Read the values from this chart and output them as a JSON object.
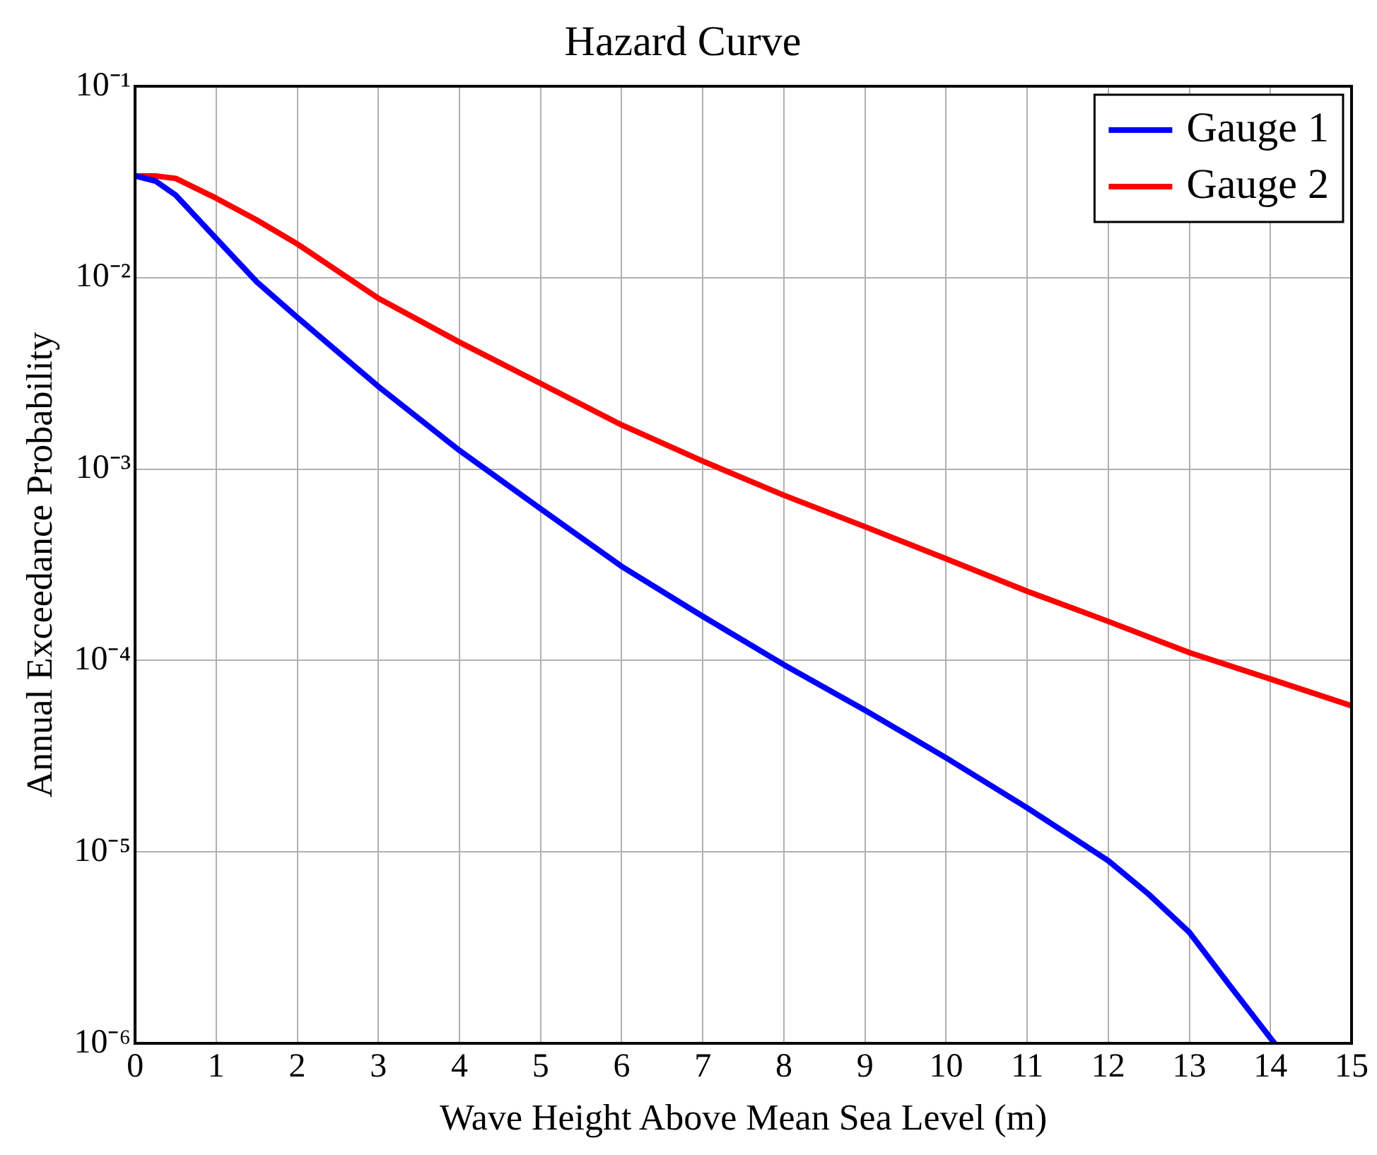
{
  "chart_data": {
    "type": "line",
    "title": "Hazard Curve",
    "xlabel": "Wave Height Above Mean Sea Level (m)",
    "ylabel": "Annual Exceedance Probability",
    "log": "y",
    "grid": true,
    "legend": "top right",
    "line_style": "solid",
    "marker": "none",
    "xlim": [
      0,
      15
    ],
    "xticks": [
      0,
      1,
      2,
      3,
      4,
      5,
      6,
      7,
      8,
      9,
      10,
      11,
      12,
      13,
      14,
      15
    ],
    "ylim": [
      1e-06,
      0.1
    ],
    "yticks": [
      {
        "value": 1e-06,
        "label": "10⁻⁶"
      },
      {
        "value": 1e-05,
        "label": "10⁻⁵"
      },
      {
        "value": 0.0001,
        "label": "10⁻⁴"
      },
      {
        "value": 0.001,
        "label": "10⁻³"
      },
      {
        "value": 0.01,
        "label": "10⁻²"
      },
      {
        "value": 0.1,
        "label": "10⁻¹"
      }
    ],
    "series": [
      {
        "name": "Gauge 1",
        "color": "#0000ff",
        "x": [
          0,
          0.25,
          0.5,
          1,
          1.5,
          2,
          3,
          4,
          5,
          6,
          7,
          8,
          9,
          10,
          11,
          12,
          12.5,
          13,
          13.5,
          14.05
        ],
        "values": [
          0.034,
          0.032,
          0.027,
          0.016,
          0.0095,
          0.0062,
          0.0027,
          0.00125,
          0.00062,
          0.00031,
          0.00017,
          9.5e-05,
          5.5e-05,
          3.1e-05,
          1.7e-05,
          9e-06,
          6e-06,
          3.8e-06,
          2e-06,
          1e-06
        ]
      },
      {
        "name": "Gauge 2",
        "color": "#ff0000",
        "x": [
          0,
          0.25,
          0.5,
          1,
          1.5,
          2,
          3,
          4,
          5,
          6,
          7,
          8,
          9,
          10,
          11,
          12,
          13,
          14,
          15
        ],
        "values": [
          0.034,
          0.034,
          0.033,
          0.026,
          0.02,
          0.015,
          0.0078,
          0.0046,
          0.0028,
          0.0017,
          0.0011,
          0.00073,
          0.0005,
          0.00034,
          0.00023,
          0.00016,
          0.00011,
          8e-05,
          5.8e-05
        ]
      }
    ]
  }
}
